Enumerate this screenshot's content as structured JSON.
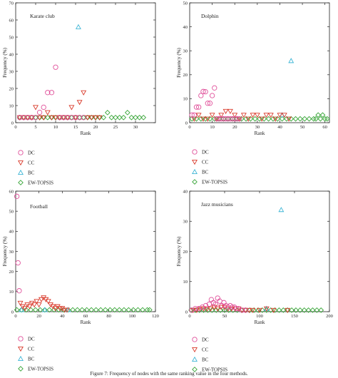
{
  "colors": {
    "DC": "#e0509a",
    "CC": "#d93a2b",
    "BC": "#3fb6d6",
    "EW-TOPSIS": "#3aa63a"
  },
  "legend_labels": [
    "DC",
    "CC",
    "BC",
    "EW-TOPSIS"
  ],
  "caption": "Figure 7: Frequency of nodes with the same ranking value in the four methods.",
  "chart_data": [
    {
      "type": "scatter",
      "title": "Karate club",
      "xlabel": "Rank",
      "ylabel": "Frequency (%)",
      "xlim": [
        0,
        35
      ],
      "ylim": [
        0,
        70
      ],
      "xticks": [
        0,
        5,
        10,
        15,
        20,
        25,
        30
      ],
      "yticks": [
        0,
        10,
        20,
        30,
        40,
        50,
        60,
        70
      ],
      "series": [
        {
          "name": "DC",
          "x": [
            1,
            2,
            3,
            4,
            5,
            6,
            7,
            8,
            9,
            10,
            11,
            12,
            13,
            14,
            15,
            16,
            17
          ],
          "y": [
            3,
            3,
            3,
            3,
            3,
            6,
            9,
            17.6,
            17.6,
            32.4,
            3,
            3,
            3,
            3,
            3,
            3,
            3
          ]
        },
        {
          "name": "CC",
          "x": [
            1,
            2,
            3,
            4,
            5,
            6,
            7,
            8,
            9,
            10,
            11,
            12,
            13,
            14,
            15,
            16,
            17,
            18,
            19,
            20,
            21
          ],
          "y": [
            3,
            3,
            3,
            3,
            9,
            3,
            3,
            6,
            3,
            3,
            3,
            3,
            3,
            9,
            3,
            12,
            17.6,
            3,
            3,
            3,
            3
          ]
        },
        {
          "name": "BC",
          "x": [
            15.7
          ],
          "y": [
            55.9
          ]
        },
        {
          "name": "EW-TOPSIS",
          "x": [
            1,
            2,
            3,
            4,
            5,
            6,
            7,
            8,
            9,
            10,
            11,
            12,
            13,
            14,
            15,
            16,
            17,
            18,
            19,
            20,
            21,
            22,
            23,
            24,
            25,
            26,
            27,
            28,
            29,
            30,
            31,
            32
          ],
          "y": [
            3,
            3,
            3,
            3,
            3,
            3,
            3,
            3,
            3,
            3,
            3,
            3,
            3,
            3,
            3,
            3,
            3,
            3,
            3,
            3,
            3,
            3,
            5.9,
            3,
            3,
            3,
            3,
            5.9,
            3,
            3,
            3,
            3
          ]
        }
      ]
    },
    {
      "type": "scatter",
      "title": "Dolphin",
      "xlabel": "Rank",
      "ylabel": "Frequency (%)",
      "xlim": [
        0,
        62
      ],
      "ylim": [
        0,
        50
      ],
      "xticks": [
        0,
        10,
        20,
        30,
        40,
        50,
        60
      ],
      "yticks": [
        0,
        10,
        20,
        30,
        40,
        50
      ],
      "series": [
        {
          "name": "DC",
          "x": [
            1,
            2,
            3,
            4,
            5,
            6,
            7,
            8,
            9,
            10,
            11,
            12,
            13,
            14,
            15,
            16,
            17,
            18,
            19,
            20,
            21,
            22
          ],
          "y": [
            3.2,
            3.2,
            6.5,
            6.5,
            11.3,
            13,
            12.9,
            8.1,
            8.1,
            11.3,
            14.5,
            1.6,
            1.6,
            1.6,
            1.6,
            1.6,
            1.6,
            1.6,
            1.6,
            1.6,
            1.6,
            1.6
          ]
        },
        {
          "name": "CC",
          "x": [
            2,
            4,
            6,
            8,
            10,
            12,
            14,
            16,
            18,
            20,
            22,
            24,
            26,
            28,
            30,
            32,
            34,
            36,
            38,
            40,
            42,
            44
          ],
          "y": [
            1.6,
            3.2,
            1.6,
            1.6,
            3.2,
            1.6,
            3.2,
            4.8,
            4.8,
            3.2,
            1.6,
            3.2,
            1.6,
            3.2,
            3.2,
            1.6,
            3.2,
            3.2,
            1.6,
            3.2,
            3.2,
            1.6
          ]
        },
        {
          "name": "BC",
          "x": [
            41,
            45
          ],
          "y": [
            3.2,
            25.8
          ]
        },
        {
          "name": "EW-TOPSIS",
          "x": [
            1,
            3,
            5,
            7,
            9,
            11,
            13,
            15,
            17,
            19,
            21,
            23,
            25,
            27,
            29,
            31,
            33,
            35,
            37,
            39,
            41,
            43,
            45,
            47,
            49,
            51,
            53,
            55,
            56,
            57,
            58,
            59,
            60,
            61
          ],
          "y": [
            1.6,
            1.6,
            1.6,
            1.6,
            1.6,
            1.6,
            1.6,
            1.6,
            1.6,
            1.6,
            1.6,
            1.6,
            1.6,
            1.6,
            1.6,
            1.6,
            1.6,
            1.6,
            1.6,
            1.6,
            1.6,
            1.6,
            1.6,
            1.6,
            1.6,
            1.6,
            1.6,
            1.6,
            1.6,
            3.2,
            1.6,
            3.2,
            1.6,
            1.6
          ]
        }
      ]
    },
    {
      "type": "scatter",
      "title": "Football",
      "xlabel": "Rank",
      "ylabel": "Frequency (%)",
      "xlim": [
        0,
        120
      ],
      "ylim": [
        0,
        60
      ],
      "xticks": [
        0,
        20,
        40,
        60,
        80,
        100,
        120
      ],
      "yticks": [
        0,
        10,
        20,
        30,
        40,
        50,
        60
      ],
      "series": [
        {
          "name": "DC",
          "x": [
            1,
            2,
            3
          ],
          "y": [
            57.4,
            24.3,
            10.4
          ]
        },
        {
          "name": "CC",
          "x": [
            4,
            6,
            8,
            10,
            12,
            14,
            16,
            18,
            20,
            22,
            24,
            26,
            28,
            30,
            32,
            34,
            36,
            38,
            40,
            42,
            44
          ],
          "y": [
            4.3,
            2.6,
            1.7,
            3.5,
            2.6,
            4.3,
            3.5,
            5.2,
            3.5,
            6.1,
            7,
            6.1,
            5.2,
            3.5,
            2.6,
            1.7,
            2.6,
            1.7,
            1.7,
            0.9,
            0.9
          ]
        },
        {
          "name": "BC",
          "x": [
            5,
            25,
            45
          ],
          "y": [
            0.9,
            0.9,
            0.9
          ]
        },
        {
          "name": "EW-TOPSIS",
          "x": [
            1,
            5,
            9,
            13,
            17,
            21,
            25,
            29,
            33,
            37,
            41,
            45,
            49,
            53,
            57,
            61,
            65,
            69,
            73,
            77,
            81,
            85,
            89,
            93,
            97,
            101,
            105,
            109,
            113,
            115
          ],
          "y": [
            0.9,
            0.9,
            0.9,
            0.9,
            0.9,
            0.9,
            0.9,
            0.9,
            0.9,
            0.9,
            0.9,
            0.9,
            0.9,
            0.9,
            0.9,
            0.9,
            0.9,
            0.9,
            0.9,
            0.9,
            0.9,
            0.9,
            0.9,
            0.9,
            0.9,
            0.9,
            0.9,
            0.9,
            0.9,
            0.9
          ]
        }
      ]
    },
    {
      "type": "scatter",
      "title": "Jazz musicians",
      "xlabel": "Rank",
      "ylabel": "Frequency (%)",
      "xlim": [
        0,
        200
      ],
      "ylim": [
        0,
        40
      ],
      "xticks": [
        0,
        50,
        100,
        150,
        200
      ],
      "yticks": [
        0,
        10,
        20,
        30,
        40
      ],
      "series": [
        {
          "name": "DC",
          "x": [
            3,
            8,
            13,
            18,
            23,
            28,
            31,
            34,
            37,
            40,
            43,
            46,
            49,
            52,
            55,
            58,
            61,
            64,
            67,
            70,
            75,
            80
          ],
          "y": [
            0.5,
            1,
            1,
            1.5,
            2,
            2.5,
            4,
            3,
            2.5,
            4.5,
            3.5,
            2,
            3,
            2,
            1.5,
            2,
            1.5,
            1.5,
            1,
            1,
            0.5,
            0.5
          ]
        },
        {
          "name": "CC",
          "x": [
            5,
            10,
            15,
            20,
            25,
            30,
            35,
            40,
            45,
            50,
            55,
            60,
            65,
            70,
            75,
            80,
            85,
            90,
            100,
            110,
            120,
            140
          ],
          "y": [
            0.5,
            0.5,
            1,
            1,
            1,
            1,
            1.5,
            1,
            1.5,
            1.5,
            1,
            1,
            1,
            1,
            0.5,
            0.5,
            0.5,
            0.5,
            0.5,
            1,
            0.5,
            0.5
          ]
        },
        {
          "name": "BC",
          "x": [
            110,
            131
          ],
          "y": [
            1,
            33.8
          ]
        },
        {
          "name": "EW-TOPSIS",
          "x": [
            2,
            8,
            14,
            20,
            26,
            32,
            38,
            44,
            50,
            56,
            62,
            68,
            74,
            80,
            86,
            92,
            98,
            104,
            110,
            116,
            122,
            128,
            134,
            140,
            146,
            152,
            158,
            164,
            170,
            176,
            182,
            188
          ],
          "y": [
            0.5,
            0.5,
            0.5,
            0.5,
            0.5,
            0.5,
            0.5,
            0.5,
            0.5,
            0.5,
            0.5,
            0.5,
            0.5,
            0.5,
            0.5,
            0.5,
            0.5,
            0.5,
            0.5,
            0.5,
            0.5,
            0.5,
            0.5,
            0.5,
            0.5,
            0.5,
            0.5,
            0.5,
            0.5,
            0.5,
            0.5,
            0.5
          ]
        }
      ]
    }
  ]
}
